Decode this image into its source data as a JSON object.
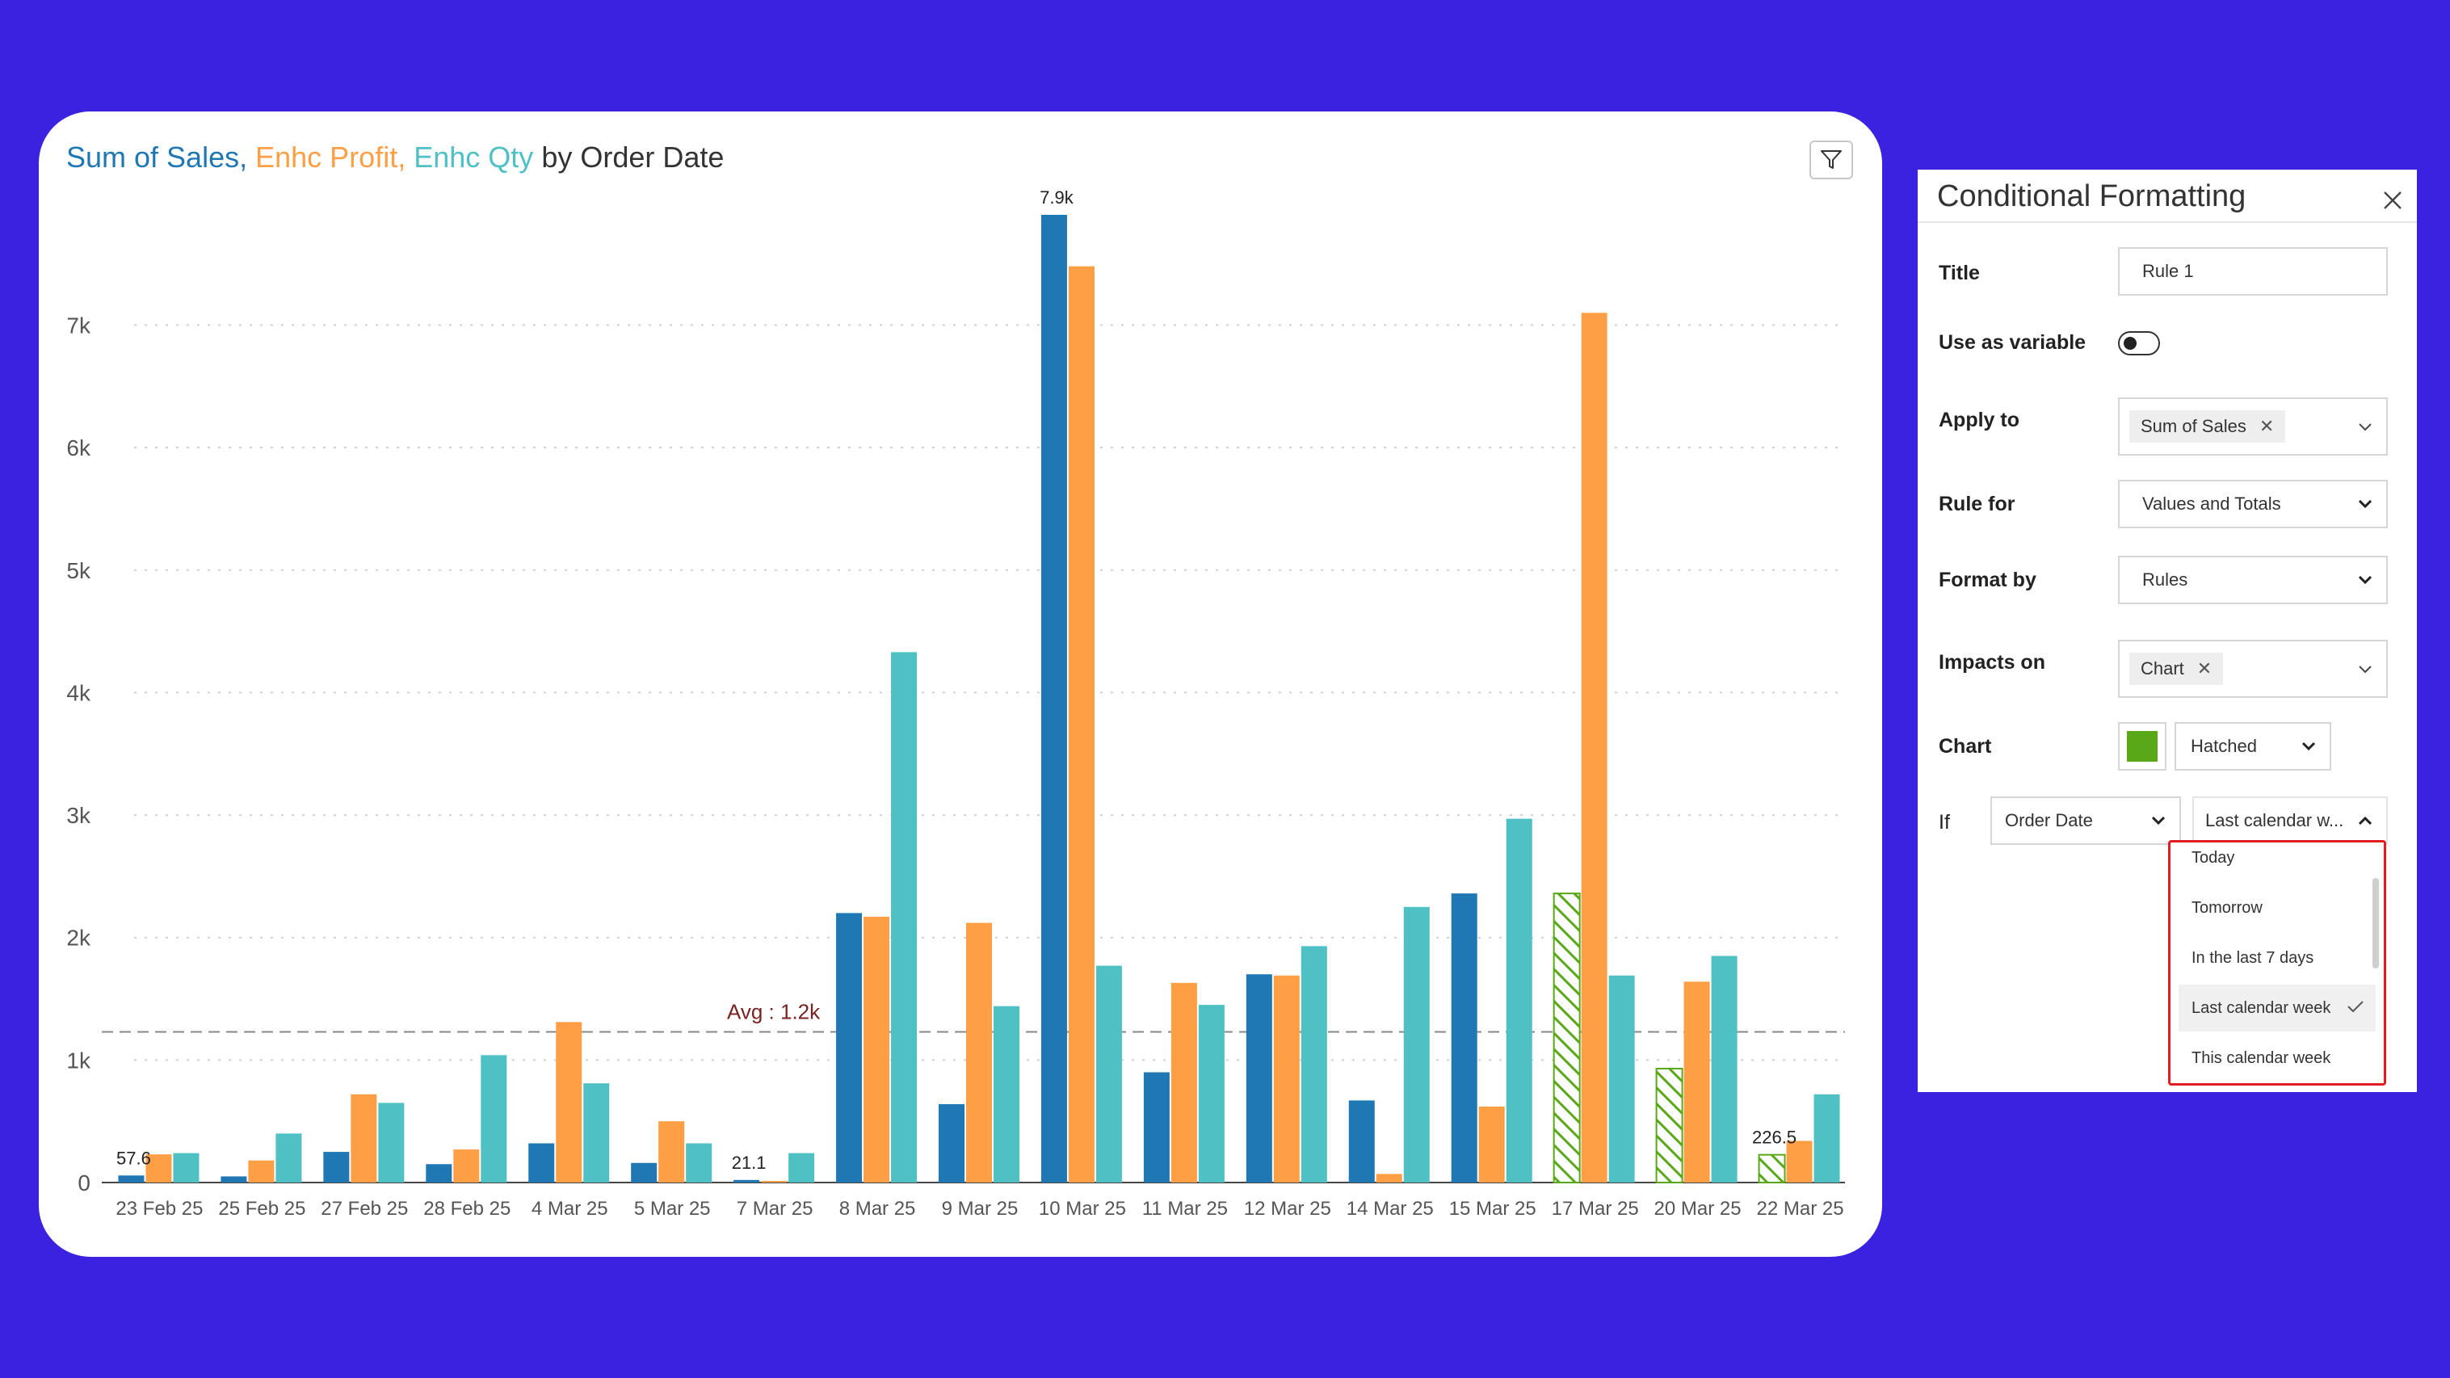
{
  "chart": {
    "title_parts": [
      {
        "text": "Sum of Sales,",
        "color": "#1f77b4"
      },
      {
        "text": "Enhc Profit,",
        "color": "#ff9f45"
      },
      {
        "text": "Enhc Qty",
        "color": "#4fc1c4"
      },
      {
        "text": "by Order Date",
        "color": "#333333"
      }
    ],
    "filter_icon": "filter-icon"
  },
  "chart_data": {
    "type": "bar",
    "categories": [
      "23 Feb 25",
      "25 Feb 25",
      "27 Feb 25",
      "28 Feb 25",
      "4 Mar 25",
      "5 Mar 25",
      "7 Mar 25",
      "8 Mar 25",
      "9 Mar 25",
      "10 Mar 25",
      "11 Mar 25",
      "12 Mar 25",
      "14 Mar 25",
      "15 Mar 25",
      "17 Mar 25",
      "20 Mar 25",
      "22 Mar 25"
    ],
    "series": [
      {
        "name": "Sum of Sales",
        "color": "#1f77b4",
        "values": [
          57.6,
          50,
          250,
          150,
          320,
          160,
          21.1,
          2200,
          640,
          7900,
          900,
          1700,
          670,
          2360,
          2360,
          930,
          226.5
        ]
      },
      {
        "name": "Enhc Profit",
        "color": "#ff9f45",
        "values": [
          230,
          180,
          720,
          270,
          1310,
          500,
          10,
          2170,
          2120,
          7480,
          1630,
          1690,
          70,
          620,
          7100,
          1640,
          340
        ]
      },
      {
        "name": "Enhc Qty",
        "color": "#4fc1c4",
        "values": [
          240,
          400,
          650,
          1040,
          810,
          320,
          240,
          4330,
          1440,
          1770,
          1450,
          1930,
          2250,
          2970,
          1690,
          1850,
          720
        ]
      }
    ],
    "data_labels": [
      {
        "category_index": 0,
        "text": "57.6"
      },
      {
        "category_index": 6,
        "text": "21.1"
      },
      {
        "category_index": 9,
        "text": "7.9k"
      },
      {
        "category_index": 16,
        "text": "226.5"
      }
    ],
    "hatched_categories": [
      14,
      15,
      16
    ],
    "hatch_color": "#58a818",
    "average": {
      "value": 1230,
      "label": "Avg : 1.2k"
    },
    "ylim": [
      0,
      7900
    ],
    "yticks": [
      0,
      1000,
      2000,
      3000,
      4000,
      5000,
      6000,
      7000
    ],
    "ytick_labels": [
      "0",
      "1k",
      "2k",
      "3k",
      "4k",
      "5k",
      "6k",
      "7k"
    ],
    "grid": true
  },
  "panel": {
    "title": "Conditional Formatting",
    "labels": {
      "title": "Title",
      "use_as_variable": "Use as variable",
      "apply_to": "Apply to",
      "rule_for": "Rule for",
      "format_by": "Format by",
      "impacts_on": "Impacts on",
      "chart": "Chart",
      "if": "If"
    },
    "title_value": "Rule 1",
    "use_as_variable_on": false,
    "apply_to_chip": "Sum of Sales",
    "rule_for_value": "Values and Totals",
    "format_by_value": "Rules",
    "impacts_on_chip": "Chart",
    "chart_color": "#58a818",
    "chart_style": "Hatched",
    "if_field": "Order Date",
    "if_condition": "Last calendar w...",
    "dropdown_options": [
      "Today",
      "Tomorrow",
      "In the last 7 days",
      "Last calendar week",
      "This calendar week"
    ],
    "selected_option": "Last calendar week"
  }
}
